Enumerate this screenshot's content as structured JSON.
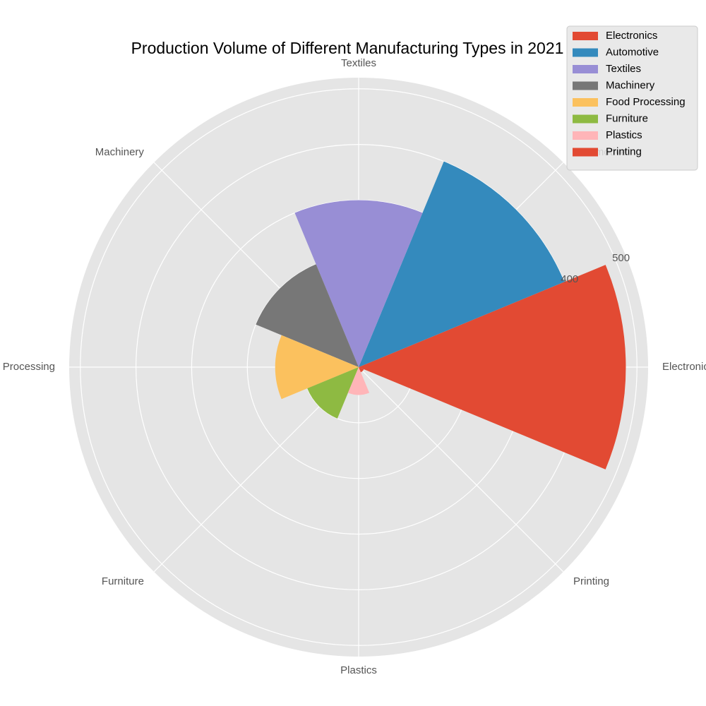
{
  "chart_data": {
    "type": "polar-bar",
    "title": "Production Volume of Different Manufacturing Types in 2021",
    "categories": [
      "Electronics",
      "Automotive",
      "Textiles",
      "Machinery",
      "Food Processing",
      "Furniture",
      "Plastics",
      "Printing"
    ],
    "values": [
      480,
      400,
      300,
      200,
      150,
      100,
      50,
      10
    ],
    "colors": [
      "#E24A33",
      "#348ABD",
      "#988ED5",
      "#777777",
      "#FBC15E",
      "#8EBA42",
      "#FFB5B8",
      "#E24A33"
    ],
    "r_ticks": [
      100,
      200,
      300,
      400,
      500
    ],
    "r_tick_labels_shown": [
      "400",
      "500"
    ],
    "r_max": 520,
    "background_color": "#E5E5E5",
    "grid": true,
    "legend": {
      "placement": "top-right",
      "entries": [
        "Electronics",
        "Automotive",
        "Textiles",
        "Machinery",
        "Food Processing",
        "Furniture",
        "Plastics",
        "Printing"
      ]
    }
  }
}
